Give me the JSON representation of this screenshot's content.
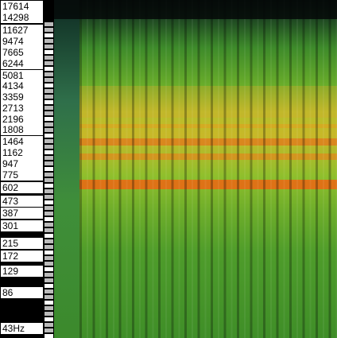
{
  "frequency_axis": {
    "labels": [
      "17614",
      "14298",
      "11627",
      "9474",
      "7665",
      "6244",
      "5081",
      "4134",
      "3359",
      "2713",
      "2196",
      "1808",
      "1464",
      "1162",
      "947",
      "775",
      "602",
      "473",
      "387",
      "301",
      "215",
      "172",
      "129",
      "86",
      "43Hz"
    ]
  }
}
